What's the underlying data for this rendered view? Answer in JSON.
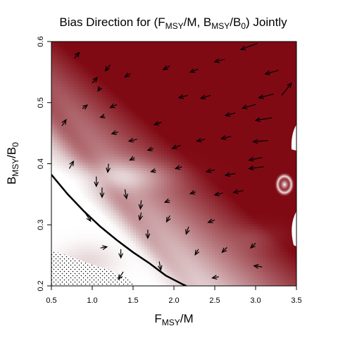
{
  "chart_data": {
    "type": "heatmap",
    "title": "Bias Direction for (F_MSY/M, B_MSY/B_0) Jointly",
    "title_parts": {
      "prefix": "Bias Direction for (F",
      "sub1": "MSY",
      "mid1": "/M, B",
      "sub2": "MSY",
      "mid2": "/B",
      "sub3": "0",
      "suffix": ") Jointly"
    },
    "xlabel_parts": {
      "main": "F",
      "sub": "MSY",
      "rest": "/M"
    },
    "ylabel_parts": {
      "main": "B",
      "sub": "MSY",
      "mid": "/B",
      "sub2": "0"
    },
    "xlim": [
      0.5,
      3.5
    ],
    "ylim": [
      0.2,
      0.6
    ],
    "x_ticks": [
      0.5,
      1.0,
      1.5,
      2.0,
      2.5,
      3.0,
      3.5
    ],
    "x_tick_labels": [
      "0.5",
      "1.0",
      "1.5",
      "2.0",
      "2.5",
      "3.0",
      "3.5"
    ],
    "y_ticks": [
      0.2,
      0.3,
      0.4,
      0.5,
      0.6
    ],
    "y_tick_labels": [
      "0.2",
      "0.3",
      "0.4",
      "0.5",
      "0.6"
    ],
    "color_low": "#ffffff",
    "color_high": "#800a14",
    "boundary_curve": {
      "x": [
        0.5,
        0.7,
        0.9,
        1.1,
        1.3,
        1.5,
        1.7,
        1.9,
        2.1,
        2.15
      ],
      "y": [
        0.382,
        0.35,
        0.322,
        0.297,
        0.275,
        0.255,
        0.237,
        0.217,
        0.203,
        0.2
      ]
    },
    "hatched_region": {
      "x": [
        0.5,
        0.5,
        0.62,
        0.75,
        0.9,
        1.05,
        1.2,
        1.3,
        1.45,
        1.5,
        1.55
      ],
      "y": [
        0.2,
        0.258,
        0.253,
        0.247,
        0.24,
        0.233,
        0.227,
        0.22,
        0.212,
        0.205,
        0.2
      ]
    },
    "arrows": [
      {
        "x": 0.78,
        "y": 0.572,
        "dx": 0.06,
        "dy": 0.01
      },
      {
        "x": 1.0,
        "y": 0.532,
        "dx": 0.06,
        "dy": 0.009
      },
      {
        "x": 1.22,
        "y": 0.562,
        "dx": -0.06,
        "dy": -0.01
      },
      {
        "x": 1.47,
        "y": 0.548,
        "dx": -0.07,
        "dy": -0.006
      },
      {
        "x": 1.95,
        "y": 0.56,
        "dx": -0.08,
        "dy": -0.006
      },
      {
        "x": 2.3,
        "y": 0.555,
        "dx": -0.1,
        "dy": -0.005
      },
      {
        "x": 2.62,
        "y": 0.571,
        "dx": -0.12,
        "dy": -0.004
      },
      {
        "x": 3.02,
        "y": 0.597,
        "dx": -0.2,
        "dy": -0.01
      },
      {
        "x": 3.28,
        "y": 0.553,
        "dx": -0.16,
        "dy": -0.006
      },
      {
        "x": 3.22,
        "y": 0.514,
        "dx": -0.18,
        "dy": -0.006
      },
      {
        "x": 3.2,
        "y": 0.475,
        "dx": -0.2,
        "dy": -0.004
      },
      {
        "x": 3.15,
        "y": 0.438,
        "dx": -0.18,
        "dy": -0.002
      },
      {
        "x": 3.1,
        "y": 0.395,
        "dx": -0.18,
        "dy": -0.003
      },
      {
        "x": 3.32,
        "y": 0.512,
        "dx": 0.12,
        "dy": 0.02
      },
      {
        "x": 3.38,
        "y": 0.43,
        "dx": 0.0,
        "dy": 0.0
      },
      {
        "x": 0.63,
        "y": 0.462,
        "dx": 0.05,
        "dy": 0.01
      },
      {
        "x": 0.72,
        "y": 0.392,
        "dx": 0.05,
        "dy": 0.012
      },
      {
        "x": 0.88,
        "y": 0.49,
        "dx": 0.06,
        "dy": 0.006
      },
      {
        "x": 1.1,
        "y": 0.525,
        "dx": -0.03,
        "dy": -0.006
      },
      {
        "x": 1.15,
        "y": 0.478,
        "dx": -0.05,
        "dy": -0.002
      },
      {
        "x": 1.3,
        "y": 0.497,
        "dx": -0.08,
        "dy": -0.005
      },
      {
        "x": 1.55,
        "y": 0.44,
        "dx": -0.1,
        "dy": -0.003
      },
      {
        "x": 1.85,
        "y": 0.468,
        "dx": -0.09,
        "dy": -0.004
      },
      {
        "x": 2.17,
        "y": 0.512,
        "dx": -0.11,
        "dy": -0.004
      },
      {
        "x": 2.45,
        "y": 0.512,
        "dx": -0.12,
        "dy": -0.005
      },
      {
        "x": 2.75,
        "y": 0.483,
        "dx": -0.12,
        "dy": -0.004
      },
      {
        "x": 3.0,
        "y": 0.497,
        "dx": -0.16,
        "dy": -0.006
      },
      {
        "x": 1.32,
        "y": 0.452,
        "dx": -0.08,
        "dy": -0.003
      },
      {
        "x": 2.08,
        "y": 0.43,
        "dx": -0.1,
        "dy": -0.005
      },
      {
        "x": 2.38,
        "y": 0.44,
        "dx": -0.1,
        "dy": -0.003
      },
      {
        "x": 2.7,
        "y": 0.445,
        "dx": -0.12,
        "dy": -0.004
      },
      {
        "x": 3.08,
        "y": 0.41,
        "dx": -0.16,
        "dy": -0.004
      },
      {
        "x": 1.2,
        "y": 0.4,
        "dx": -0.01,
        "dy": -0.014
      },
      {
        "x": 1.52,
        "y": 0.41,
        "dx": -0.06,
        "dy": -0.004
      },
      {
        "x": 1.75,
        "y": 0.425,
        "dx": -0.07,
        "dy": -0.003
      },
      {
        "x": 2.1,
        "y": 0.395,
        "dx": -0.08,
        "dy": -0.003
      },
      {
        "x": 2.5,
        "y": 0.39,
        "dx": -0.1,
        "dy": -0.003
      },
      {
        "x": 2.75,
        "y": 0.384,
        "dx": -0.12,
        "dy": -0.003
      },
      {
        "x": 1.78,
        "y": 0.389,
        "dx": -0.06,
        "dy": -0.002
      },
      {
        "x": 2.27,
        "y": 0.354,
        "dx": -0.07,
        "dy": -0.003
      },
      {
        "x": 2.6,
        "y": 0.352,
        "dx": -0.1,
        "dy": -0.003
      },
      {
        "x": 2.85,
        "y": 0.356,
        "dx": -0.12,
        "dy": -0.003
      },
      {
        "x": 1.05,
        "y": 0.379,
        "dx": 0.0,
        "dy": -0.016
      },
      {
        "x": 1.12,
        "y": 0.361,
        "dx": 0.0,
        "dy": -0.016
      },
      {
        "x": 1.4,
        "y": 0.358,
        "dx": 0.02,
        "dy": -0.015
      },
      {
        "x": 0.92,
        "y": 0.318,
        "dx": 0.06,
        "dy": -0.012
      },
      {
        "x": 1.6,
        "y": 0.34,
        "dx": -0.01,
        "dy": -0.014
      },
      {
        "x": 1.95,
        "y": 0.34,
        "dx": -0.06,
        "dy": -0.003
      },
      {
        "x": 2.5,
        "y": 0.308,
        "dx": -0.08,
        "dy": -0.004
      },
      {
        "x": 2.18,
        "y": 0.297,
        "dx": -0.03,
        "dy": -0.012
      },
      {
        "x": 1.68,
        "y": 0.292,
        "dx": 0.0,
        "dy": -0.014
      },
      {
        "x": 1.6,
        "y": 0.32,
        "dx": -0.02,
        "dy": -0.012
      },
      {
        "x": 1.95,
        "y": 0.315,
        "dx": -0.04,
        "dy": -0.01
      },
      {
        "x": 1.1,
        "y": 0.262,
        "dx": 0.08,
        "dy": 0.002
      },
      {
        "x": 1.35,
        "y": 0.26,
        "dx": 0.0,
        "dy": -0.014
      },
      {
        "x": 2.65,
        "y": 0.263,
        "dx": -0.06,
        "dy": -0.008
      },
      {
        "x": 2.3,
        "y": 0.26,
        "dx": -0.04,
        "dy": -0.009
      },
      {
        "x": 3.0,
        "y": 0.27,
        "dx": -0.06,
        "dy": -0.008
      },
      {
        "x": 3.08,
        "y": 0.231,
        "dx": -0.1,
        "dy": 0.002
      },
      {
        "x": 1.82,
        "y": 0.24,
        "dx": 0.02,
        "dy": -0.014
      },
      {
        "x": 1.38,
        "y": 0.223,
        "dx": -0.06,
        "dy": -0.012
      },
      {
        "x": 2.55,
        "y": 0.215,
        "dx": -0.08,
        "dy": -0.002
      }
    ]
  }
}
